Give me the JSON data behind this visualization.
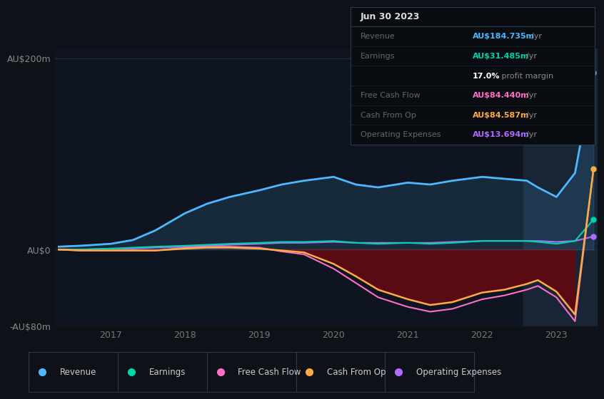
{
  "background_color": "#0e1117",
  "plot_bg_color": "#0e1520",
  "years": [
    2016.3,
    2016.6,
    2017.0,
    2017.3,
    2017.6,
    2018.0,
    2018.3,
    2018.6,
    2019.0,
    2019.3,
    2019.6,
    2020.0,
    2020.3,
    2020.6,
    2021.0,
    2021.3,
    2021.6,
    2022.0,
    2022.3,
    2022.6,
    2022.75,
    2023.0,
    2023.25,
    2023.5
  ],
  "revenue": [
    3,
    4,
    6,
    10,
    20,
    38,
    48,
    55,
    62,
    68,
    72,
    76,
    68,
    65,
    70,
    68,
    72,
    76,
    74,
    72,
    65,
    55,
    80,
    184.735
  ],
  "earnings": [
    0,
    0,
    1,
    2,
    3,
    4,
    5,
    6,
    7,
    8,
    8,
    9,
    7,
    6,
    7,
    6,
    7,
    9,
    9,
    9,
    8,
    6,
    9,
    31.485
  ],
  "free_cash_flow": [
    0,
    -1,
    -1,
    -1,
    -1,
    2,
    3,
    3,
    2,
    -2,
    -5,
    -20,
    -35,
    -50,
    -60,
    -65,
    -62,
    -52,
    -48,
    -42,
    -38,
    -50,
    -75,
    84.44
  ],
  "cash_from_op": [
    0,
    -1,
    -1,
    -1,
    -1,
    1,
    2,
    2,
    1,
    -1,
    -3,
    -15,
    -28,
    -42,
    -52,
    -58,
    -55,
    -45,
    -42,
    -36,
    -32,
    -44,
    -68,
    84.587
  ],
  "operating_expenses": [
    0,
    0,
    1,
    1,
    2,
    3,
    4,
    5,
    6,
    7,
    7,
    8,
    7,
    7,
    7,
    7,
    8,
    9,
    9,
    9,
    9,
    8,
    9,
    13.694
  ],
  "revenue_color": "#4db8ff",
  "earnings_color": "#00d4aa",
  "free_cash_flow_color": "#ff6ec7",
  "cash_from_op_color": "#ffaa44",
  "operating_expenses_color": "#b06cff",
  "ylim": [
    -80,
    210
  ],
  "ytick_positions": [
    -80,
    0,
    200
  ],
  "ytick_labels": [
    "-AU$80m",
    "AU$0",
    "AU$200m"
  ],
  "xtick_positions": [
    2017,
    2018,
    2019,
    2020,
    2021,
    2022,
    2023
  ],
  "xtick_labels": [
    "2017",
    "2018",
    "2019",
    "2020",
    "2021",
    "2022",
    "2023"
  ],
  "grid_color": "#253545",
  "highlight_x_start": 2022.55,
  "tooltip": {
    "date": "Jun 30 2023",
    "rows": [
      {
        "label": "Revenue",
        "value": "AU$184.735m",
        "unit": "/yr",
        "value_color": "#4db8ff"
      },
      {
        "label": "Earnings",
        "value": "AU$31.485m",
        "unit": "/yr",
        "value_color": "#00d4aa"
      },
      {
        "label": "",
        "value": "17.0%",
        "unit": " profit margin",
        "value_color": "#ffffff"
      },
      {
        "label": "Free Cash Flow",
        "value": "AU$84.440m",
        "unit": "/yr",
        "value_color": "#ff6ec7"
      },
      {
        "label": "Cash From Op",
        "value": "AU$84.587m",
        "unit": "/yr",
        "value_color": "#ffaa44"
      },
      {
        "label": "Operating Expenses",
        "value": "AU$13.694m",
        "unit": "/yr",
        "value_color": "#b06cff"
      }
    ]
  },
  "legend_items": [
    {
      "label": "Revenue",
      "color": "#4db8ff"
    },
    {
      "label": "Earnings",
      "color": "#00d4aa"
    },
    {
      "label": "Free Cash Flow",
      "color": "#ff6ec7"
    },
    {
      "label": "Cash From Op",
      "color": "#ffaa44"
    },
    {
      "label": "Operating Expenses",
      "color": "#b06cff"
    }
  ]
}
